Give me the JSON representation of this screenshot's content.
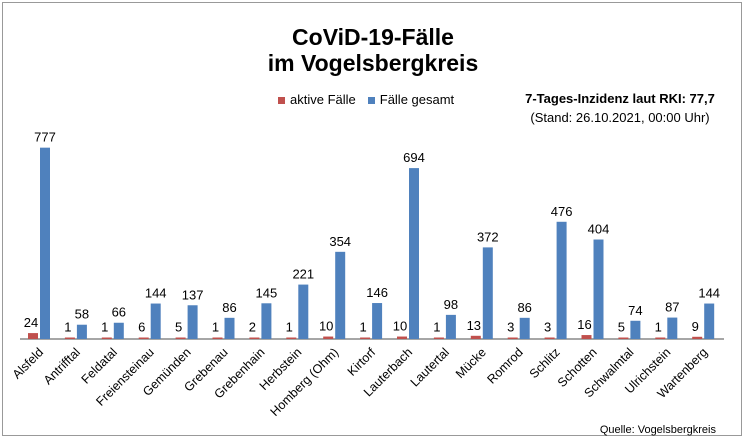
{
  "chart_data": {
    "type": "bar",
    "title_line1": "CoViD-19-Fälle",
    "title_line2": "im Vogelsbergkreis",
    "categories": [
      "Alsfeld",
      "Antrifftal",
      "Feldatal",
      "Freiensteinau",
      "Gemünden",
      "Grebenau",
      "Grebenhain",
      "Herbstein",
      "Homberg (Ohm)",
      "Kirtorf",
      "Lauterbach",
      "Lautertal",
      "Mücke",
      "Romrod",
      "Schlitz",
      "Schotten",
      "Schwalmtal",
      "Ulrichstein",
      "Wartenberg"
    ],
    "series": [
      {
        "name": "aktive Fälle",
        "color": "#c0504d",
        "values": [
          24,
          1,
          1,
          6,
          5,
          1,
          2,
          1,
          10,
          1,
          10,
          1,
          13,
          3,
          3,
          16,
          5,
          1,
          9
        ]
      },
      {
        "name": "Fälle gesamt",
        "color": "#4f81bd",
        "values": [
          777,
          58,
          66,
          144,
          137,
          86,
          145,
          221,
          354,
          146,
          694,
          98,
          372,
          86,
          476,
          404,
          74,
          87,
          144
        ]
      }
    ],
    "ylim": [
      0,
      800
    ],
    "grid": false,
    "legend": "top-center",
    "incidence_line": "7-Tages-Inzidenz laut RKI: 77,7",
    "stand_line": "(Stand: 26.10.2021, 00:00 Uhr)",
    "source": "Quelle: Vogelsbergkreis"
  }
}
